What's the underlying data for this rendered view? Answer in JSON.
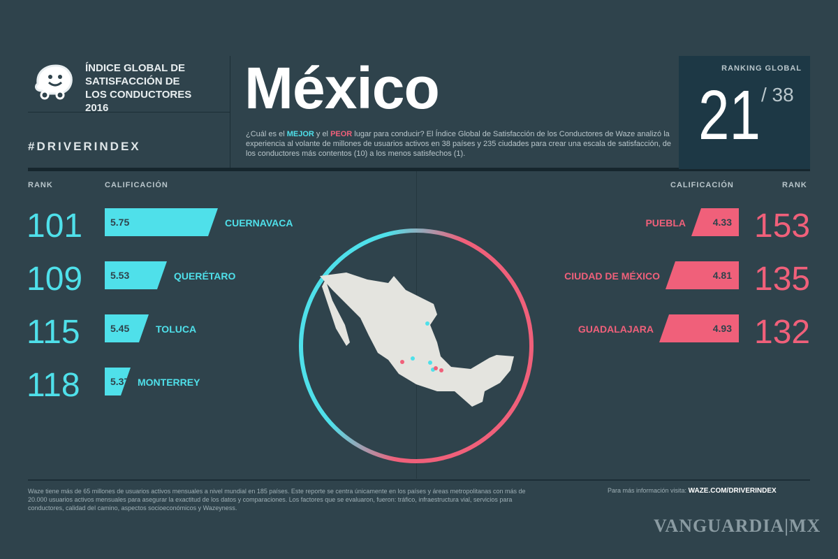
{
  "header": {
    "logo_title": "ÍNDICE GLOBAL DE\nSATISFACCIÓN DE\nLOS CONDUCTORES\n2016",
    "hashtag": "#DRIVERINDEX",
    "country": "México",
    "description": {
      "p1": "¿Cuál es el ",
      "best": "MEJOR",
      "p2": " y el ",
      "worst": "PEOR",
      "p3": " lugar para conducir? El Índice Global de Satisfacción de los Conductores de Waze analizó la experiencia al volante de millones de usuarios activos en 38 países y 235 ciudades para crear una escala de satisfacción, de los conductores más contentos (10) a los menos satisfechos (1)."
    }
  },
  "ranking": {
    "label": "RANKING GLOBAL",
    "position": "21",
    "total": "/ 38"
  },
  "columns": {
    "rank": "RANK",
    "score": "CALIFICACIÓN"
  },
  "best": [
    {
      "rank": "101",
      "score": "5.75",
      "city": "CUERNAVACA"
    },
    {
      "rank": "109",
      "score": "5.53",
      "city": "QUERÉTARO"
    },
    {
      "rank": "115",
      "score": "5.45",
      "city": "TOLUCA"
    },
    {
      "rank": "118",
      "score": "5.37",
      "city": "MONTERREY"
    }
  ],
  "worst": [
    {
      "rank": "153",
      "score": "4.33",
      "city": "PUEBLA"
    },
    {
      "rank": "135",
      "score": "4.81",
      "city": "CIUDAD DE MÉXICO"
    },
    {
      "rank": "132",
      "score": "4.93",
      "city": "GUADALAJARA"
    }
  ],
  "footer": {
    "note": "Waze tiene más de 65 millones de usuarios activos mensuales a nivel mundial en 185 países. Este reporte se centra únicamente en los países y áreas metropolitanas con más de 20.000 usuarios activos mensuales para asegurar la exactitud de los datos y comparaciones. Los factores que se evaluaron, fueron: tráfico, infraestructura vial, servicios para conductores, calidad del camino, aspectos socioeconómicos y Wazeyness.",
    "more_label": "Para más información visita:",
    "more_link": "WAZE.COM/DRIVERINDEX",
    "watermark": "VANGUARDIA|MX"
  },
  "colors": {
    "best": "#4fe0ea",
    "worst": "#f0607a",
    "background": "#2f434c"
  },
  "icons": {
    "logo": "waze-logo-icon",
    "map": "mexico-map"
  }
}
